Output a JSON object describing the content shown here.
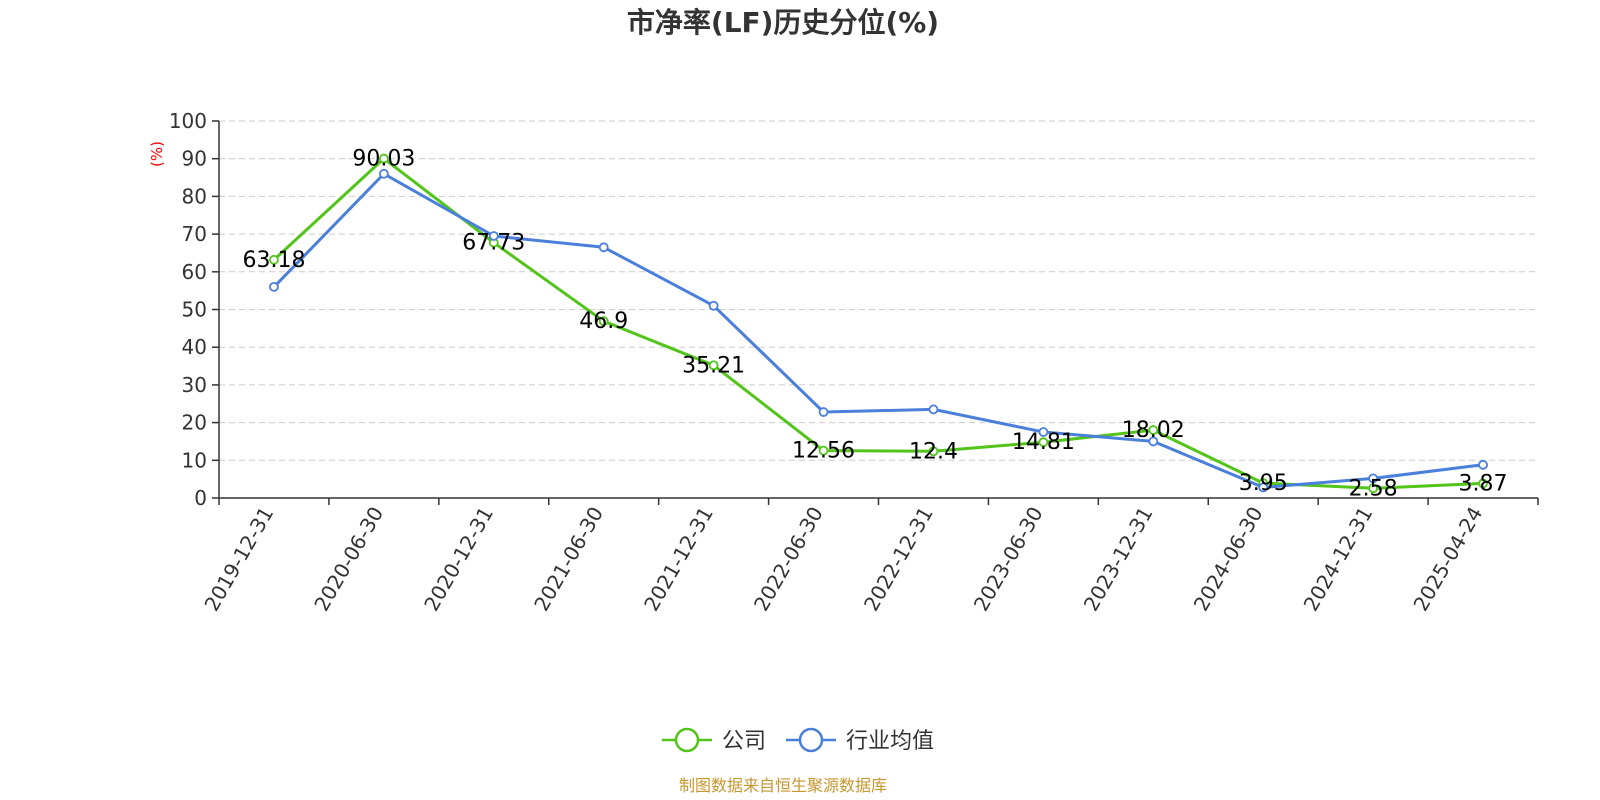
{
  "chart_data": {
    "type": "line",
    "title": "市净率(LF)历史分位(%)",
    "ylabel": "(%)",
    "ylim": [
      0,
      100
    ],
    "yticks": [
      "0",
      "10",
      "20",
      "30",
      "40",
      "50",
      "60",
      "70",
      "80",
      "90",
      "100"
    ],
    "grid": true,
    "legend_position": "bottom",
    "categories": [
      "2019-12-31",
      "2020-06-30",
      "2020-12-31",
      "2021-06-30",
      "2021-12-31",
      "2022-06-30",
      "2022-12-31",
      "2023-06-30",
      "2023-12-31",
      "2024-06-30",
      "2024-12-31",
      "2025-04-24"
    ],
    "series": [
      {
        "name": "公司",
        "color": "#52c41a",
        "values": [
          63.18,
          90.03,
          67.73,
          46.9,
          35.21,
          12.56,
          12.4,
          14.81,
          18.02,
          3.95,
          2.58,
          3.87
        ],
        "labels": [
          "63.18",
          "90.03",
          "67.73",
          "46.9",
          "35.21",
          "12.56",
          "12.4",
          "14.81",
          "18.02",
          "3.95",
          "2.58",
          "3.87"
        ]
      },
      {
        "name": "行业均值",
        "color": "#4a7fdc",
        "values": [
          56,
          86,
          69.5,
          66.5,
          51,
          22.8,
          23.5,
          17.5,
          15,
          2.8,
          5.2,
          8.8
        ]
      }
    ]
  },
  "footer": {
    "source": "制图数据来自恒生聚源数据库",
    "source_color": "#c8962e"
  }
}
